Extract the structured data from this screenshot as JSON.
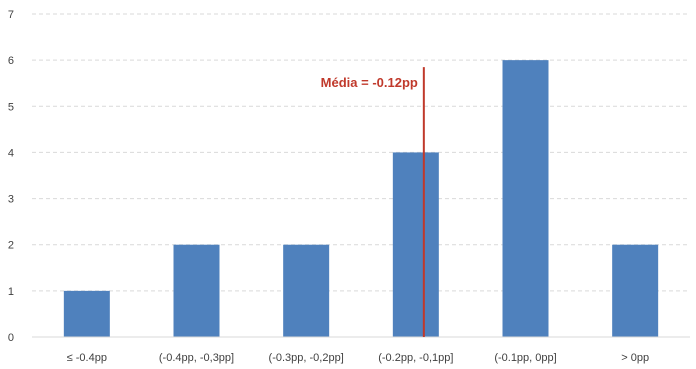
{
  "chart_data": {
    "type": "bar",
    "categories": [
      "≤ -0.4pp",
      "(-0.4pp, -0,3pp]",
      "(-0.3pp, -0,2pp]",
      "(-0.2pp, -0,1pp]",
      "(-0.1pp, 0pp]",
      "> 0pp"
    ],
    "values": [
      1,
      2,
      2,
      4,
      6,
      2
    ],
    "y_ticks": [
      "0",
      "1",
      "2",
      "3",
      "4",
      "5",
      "6",
      "7"
    ],
    "ylim": [
      0,
      7
    ],
    "grid": "dashed-horizontal",
    "bar_color": "#4f81bd",
    "annotation": {
      "label": "Média = -0.12pp",
      "category_index": 3,
      "line_top_value": 5.85,
      "color": "#c0392b"
    }
  }
}
